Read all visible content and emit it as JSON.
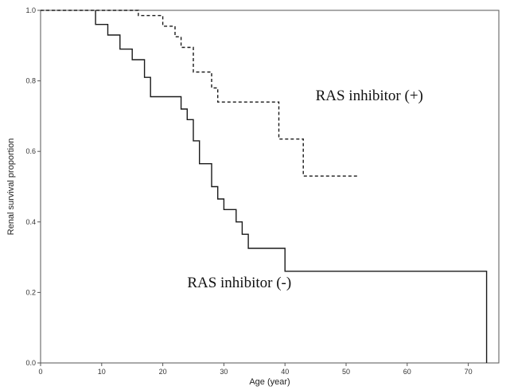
{
  "chart_data": {
    "type": "line",
    "subtype": "kaplan-meier step",
    "xlabel": "Age (year)",
    "ylabel": "Renal survival proportion",
    "xlim": [
      0,
      75
    ],
    "ylim": [
      0.0,
      1.0
    ],
    "x_ticks": [
      "0",
      "10",
      "20",
      "30",
      "40",
      "50",
      "60",
      "70"
    ],
    "y_ticks": [
      "0.0",
      "0.2",
      "0.4",
      "0.6",
      "0.8",
      "1.0"
    ],
    "grid": false,
    "series": [
      {
        "name": "RAS inhibitor (-)",
        "line_style": "solid",
        "points": [
          [
            9,
            1.0
          ],
          [
            9,
            0.96
          ],
          [
            11,
            0.96
          ],
          [
            11,
            0.93
          ],
          [
            13,
            0.93
          ],
          [
            13,
            0.89
          ],
          [
            15,
            0.89
          ],
          [
            15,
            0.86
          ],
          [
            17,
            0.86
          ],
          [
            17,
            0.81
          ],
          [
            18,
            0.81
          ],
          [
            18,
            0.755
          ],
          [
            23,
            0.755
          ],
          [
            23,
            0.72
          ],
          [
            24,
            0.72
          ],
          [
            24,
            0.69
          ],
          [
            25,
            0.69
          ],
          [
            25,
            0.63
          ],
          [
            26,
            0.63
          ],
          [
            26,
            0.565
          ],
          [
            28,
            0.565
          ],
          [
            28,
            0.5
          ],
          [
            29,
            0.5
          ],
          [
            29,
            0.465
          ],
          [
            30,
            0.465
          ],
          [
            30,
            0.435
          ],
          [
            32,
            0.435
          ],
          [
            32,
            0.4
          ],
          [
            33,
            0.4
          ],
          [
            33,
            0.365
          ],
          [
            34,
            0.365
          ],
          [
            34,
            0.325
          ],
          [
            40,
            0.325
          ],
          [
            40,
            0.26
          ],
          [
            73,
            0.26
          ],
          [
            73,
            0.0
          ]
        ]
      },
      {
        "name": "RAS inhibitor (+)",
        "line_style": "dashed",
        "points": [
          [
            0,
            1.0
          ],
          [
            16,
            1.0
          ],
          [
            16,
            0.985
          ],
          [
            20,
            0.985
          ],
          [
            20,
            0.955
          ],
          [
            22,
            0.955
          ],
          [
            22,
            0.925
          ],
          [
            23,
            0.925
          ],
          [
            23,
            0.895
          ],
          [
            25,
            0.895
          ],
          [
            25,
            0.825
          ],
          [
            28,
            0.825
          ],
          [
            28,
            0.78
          ],
          [
            29,
            0.78
          ],
          [
            29,
            0.74
          ],
          [
            39,
            0.74
          ],
          [
            39,
            0.635
          ],
          [
            43,
            0.635
          ],
          [
            43,
            0.53
          ],
          [
            52,
            0.53
          ]
        ]
      }
    ],
    "annotations": [
      {
        "text": "RAS inhibitor (+)",
        "x": 45,
        "y": 0.745
      },
      {
        "text": "RAS inhibitor (-)",
        "x": 24,
        "y": 0.215
      }
    ]
  }
}
